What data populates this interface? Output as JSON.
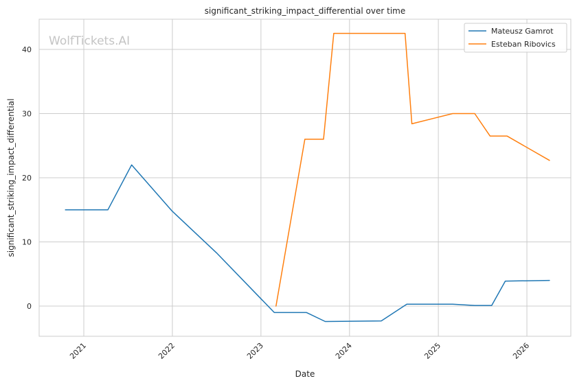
{
  "chart_data": {
    "type": "line",
    "title": "significant_striking_impact_differential over time",
    "xlabel": "Date",
    "ylabel": "significant_striking_impact_differential",
    "watermark": "WolfTickets.AI",
    "xlim": [
      "2020-07-01",
      "2026-07-01"
    ],
    "ylim": [
      -4.7,
      44.7
    ],
    "x_ticks": [
      "2021",
      "2022",
      "2023",
      "2024",
      "2025",
      "2026"
    ],
    "y_ticks": [
      0,
      10,
      20,
      30,
      40
    ],
    "grid": true,
    "legend_position": "top-right",
    "series": [
      {
        "name": "Mateusz Gamrot",
        "color": "#1f77b4",
        "points": [
          [
            "2020-10-17",
            15.0
          ],
          [
            "2021-04-10",
            15.0
          ],
          [
            "2021-07-17",
            22.0
          ],
          [
            "2021-12-31",
            14.8
          ],
          [
            "2022-07-02",
            8.3
          ],
          [
            "2023-02-25",
            -1.0
          ],
          [
            "2023-07-08",
            -1.0
          ],
          [
            "2023-09-23",
            -2.4
          ],
          [
            "2024-05-11",
            -2.3
          ],
          [
            "2024-08-24",
            0.3
          ],
          [
            "2025-03-01",
            0.3
          ],
          [
            "2025-05-31",
            0.1
          ],
          [
            "2025-08-09",
            0.1
          ],
          [
            "2025-10-04",
            3.9
          ],
          [
            "2026-04-04",
            4.0
          ]
        ]
      },
      {
        "name": "Esteban Ribovics",
        "color": "#ff7f0e",
        "points": [
          [
            "2023-03-04",
            0.0
          ],
          [
            "2023-07-01",
            26.0
          ],
          [
            "2023-09-16",
            26.0
          ],
          [
            "2023-10-28",
            42.5
          ],
          [
            "2024-08-17",
            42.5
          ],
          [
            "2024-09-14",
            28.4
          ],
          [
            "2025-03-01",
            30.0
          ],
          [
            "2025-05-31",
            30.0
          ],
          [
            "2025-08-02",
            26.5
          ],
          [
            "2025-10-11",
            26.5
          ],
          [
            "2026-04-04",
            22.7
          ]
        ]
      }
    ]
  }
}
